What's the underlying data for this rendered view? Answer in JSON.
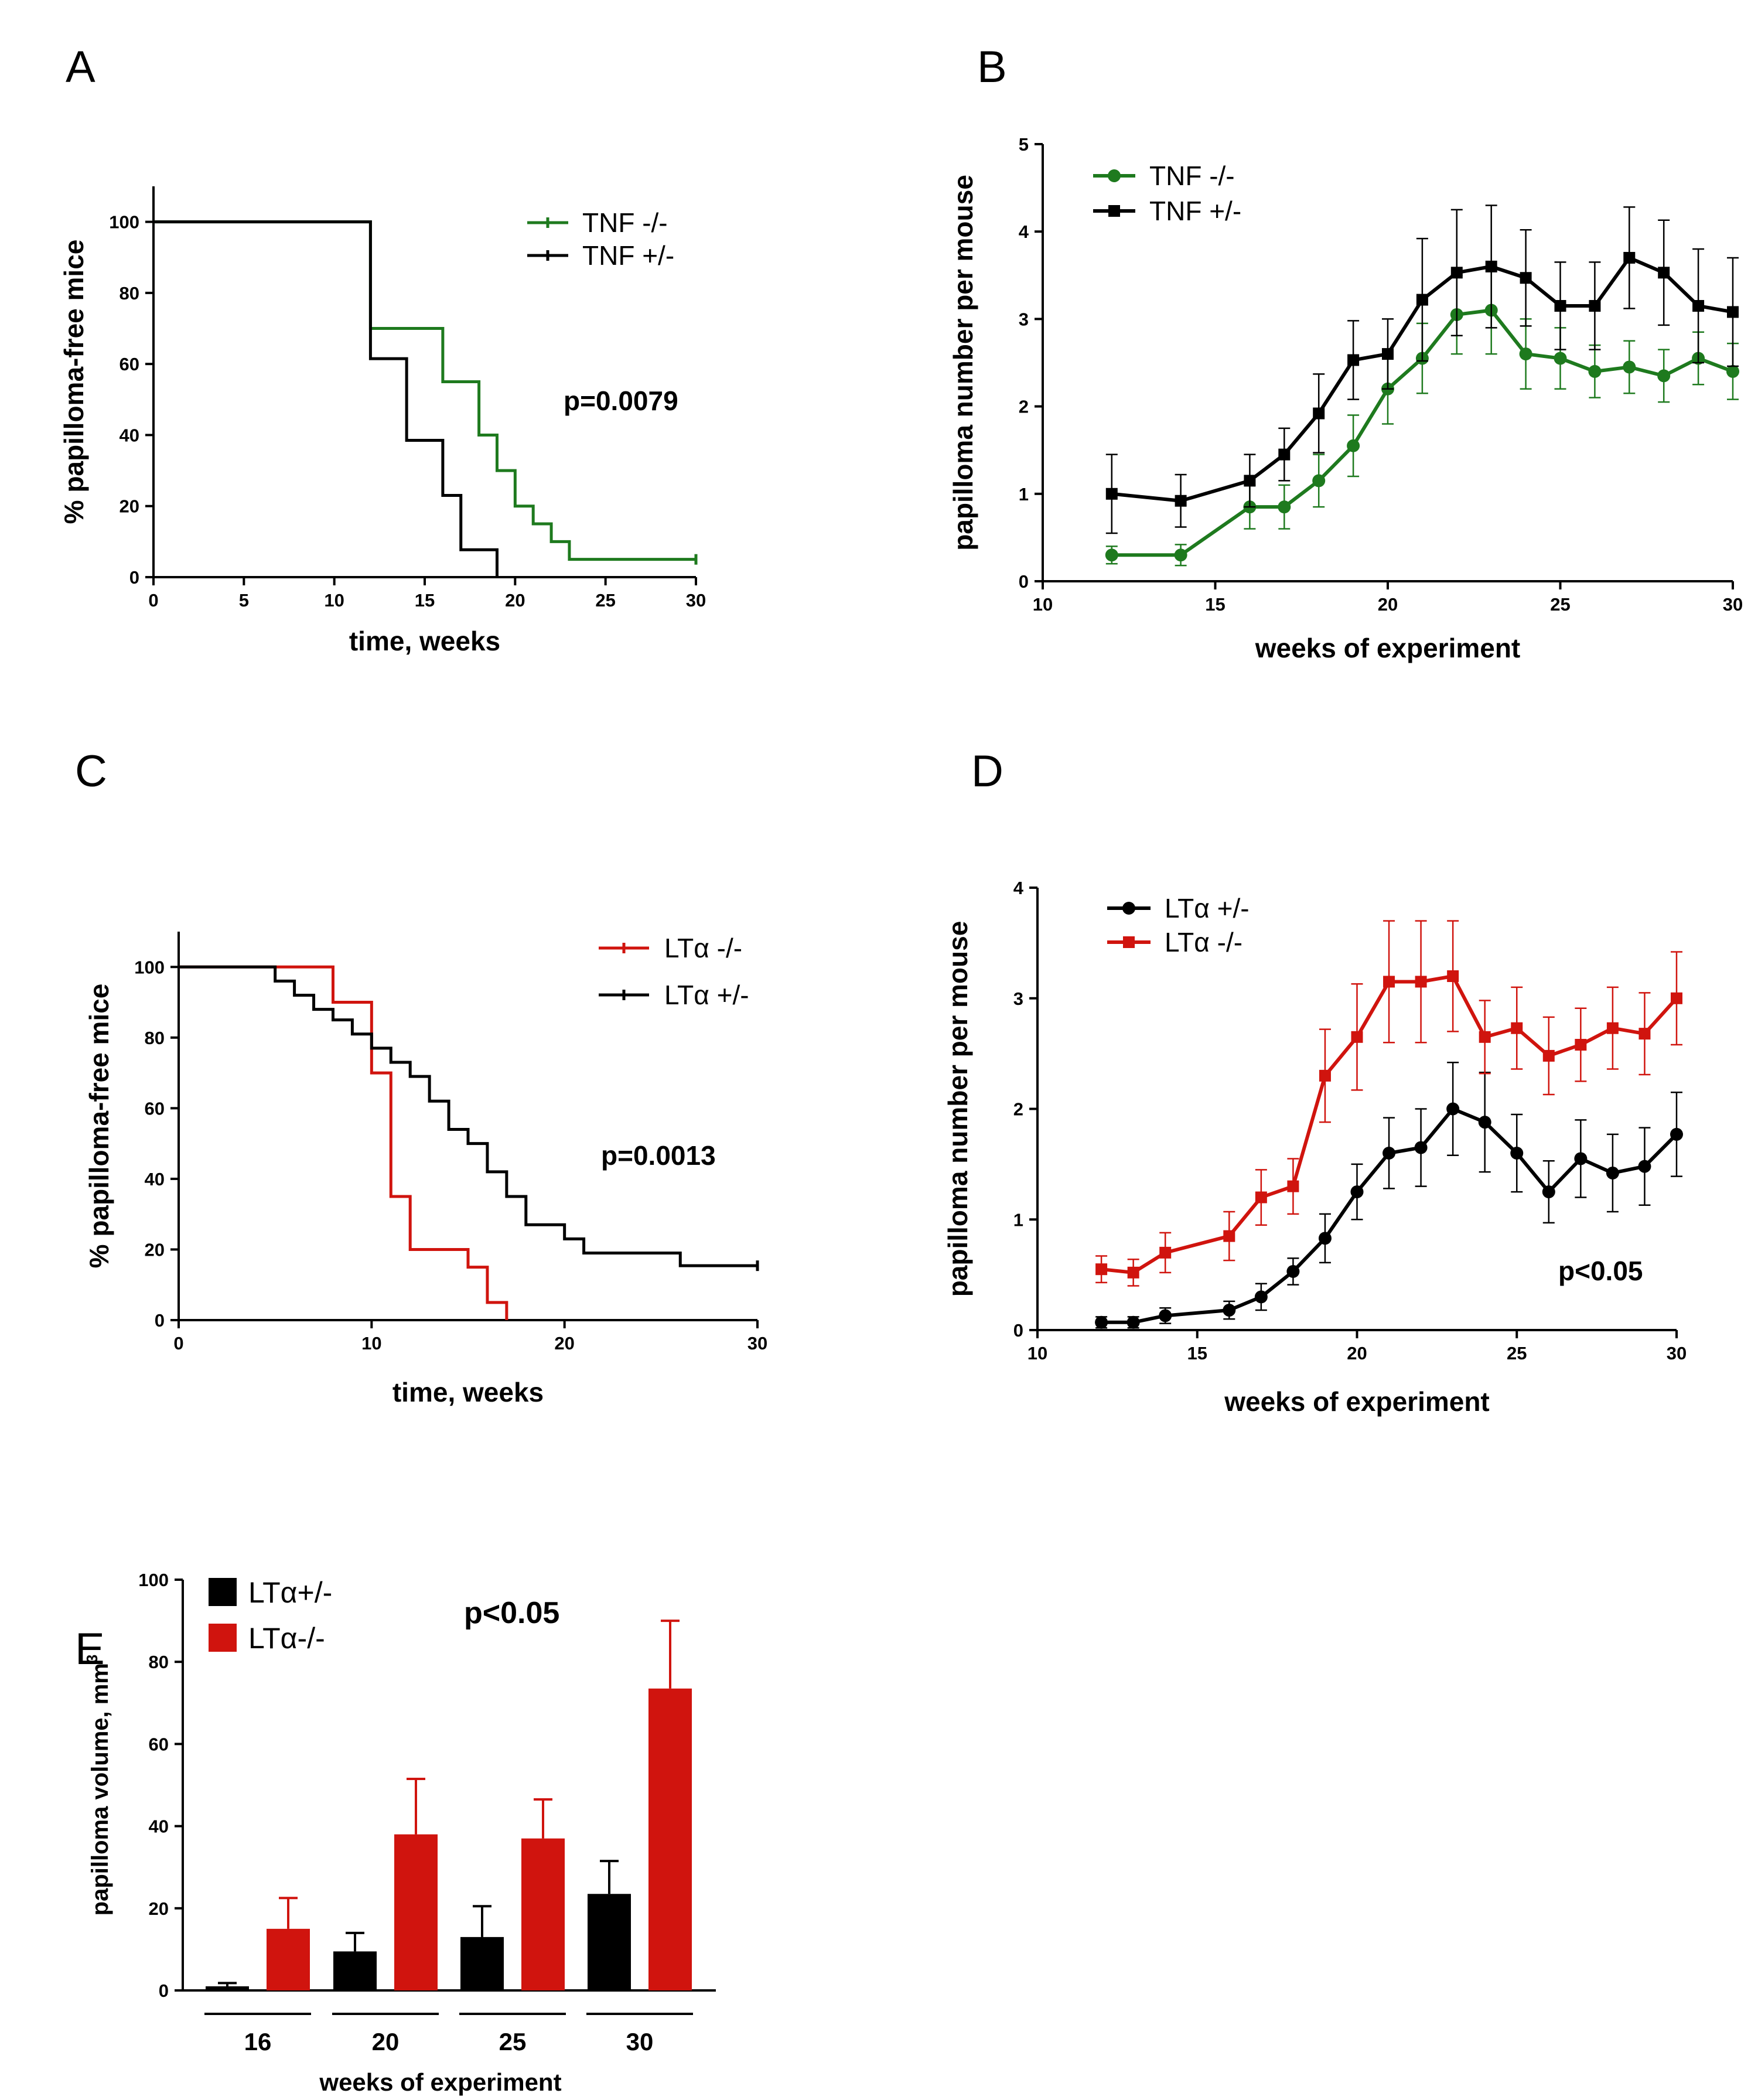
{
  "colors": {
    "green": "#1e7a1e",
    "black": "#000000",
    "red": "#d0140e"
  },
  "chart_data": [
    {
      "id": "A",
      "panel_label": "A",
      "type": "line",
      "step": true,
      "xlabel": "time, weeks",
      "ylabel": "% papilloma-free mice",
      "xlim": [
        0,
        30
      ],
      "ylim": [
        0,
        110
      ],
      "xticks": [
        0,
        5,
        10,
        15,
        20,
        25,
        30
      ],
      "yticks": [
        0,
        20,
        40,
        60,
        80,
        100
      ],
      "xtick_labels": [
        "0",
        "5",
        "10",
        "15",
        "20",
        "25",
        "30"
      ],
      "ytick_labels": [
        "0",
        "20",
        "40",
        "60",
        "80",
        "100"
      ],
      "annotation": "p=0.0079",
      "series": [
        {
          "name": "TNF -/-",
          "color": "#1e7a1e",
          "x": [
            0,
            12,
            16,
            18,
            19,
            20,
            21,
            22,
            23,
            30
          ],
          "values": [
            100,
            70,
            55,
            40,
            30,
            20,
            15,
            10,
            5,
            5
          ]
        },
        {
          "name": "TNF +/-",
          "color": "#000000",
          "x": [
            0,
            12,
            14,
            16,
            17,
            19
          ],
          "values": [
            100,
            61.5,
            38.5,
            23,
            7.7,
            0
          ]
        }
      ]
    },
    {
      "id": "B",
      "panel_label": "B",
      "type": "line",
      "xlabel": "weeks of experiment",
      "ylabel": "papilloma number per mouse",
      "xlim": [
        10,
        30
      ],
      "ylim": [
        0,
        5
      ],
      "xticks": [
        10,
        15,
        20,
        25,
        30
      ],
      "yticks": [
        0,
        1,
        2,
        3,
        4,
        5
      ],
      "xtick_labels": [
        "10",
        "15",
        "20",
        "25",
        "30"
      ],
      "ytick_labels": [
        "0",
        "1",
        "2",
        "3",
        "4",
        "5"
      ],
      "series": [
        {
          "name": "TNF -/-",
          "color": "#1e7a1e",
          "marker": "circle",
          "x": [
            12,
            14,
            16,
            17,
            18,
            19,
            20,
            21,
            22,
            23,
            24,
            25,
            26,
            27,
            28,
            29,
            30
          ],
          "values": [
            0.3,
            0.3,
            0.85,
            0.85,
            1.15,
            1.55,
            2.2,
            2.55,
            3.05,
            3.1,
            2.6,
            2.55,
            2.4,
            2.45,
            2.35,
            2.55,
            2.4
          ],
          "errors": [
            0.1,
            0.12,
            0.25,
            0.25,
            0.3,
            0.35,
            0.4,
            0.4,
            0.45,
            0.5,
            0.4,
            0.35,
            0.3,
            0.3,
            0.3,
            0.3,
            0.32
          ]
        },
        {
          "name": "TNF +/-",
          "color": "#000000",
          "marker": "square",
          "x": [
            12,
            14,
            16,
            17,
            18,
            19,
            20,
            21,
            22,
            23,
            24,
            25,
            26,
            27,
            28,
            29,
            30
          ],
          "values": [
            1.0,
            0.92,
            1.15,
            1.45,
            1.92,
            2.53,
            2.6,
            3.22,
            3.53,
            3.6,
            3.47,
            3.15,
            3.15,
            3.7,
            3.53,
            3.15,
            3.08
          ],
          "errors": [
            0.45,
            0.3,
            0.3,
            0.3,
            0.45,
            0.45,
            0.4,
            0.7,
            0.72,
            0.7,
            0.55,
            0.5,
            0.5,
            0.58,
            0.6,
            0.65,
            0.62
          ]
        }
      ]
    },
    {
      "id": "C",
      "panel_label": "C",
      "type": "line",
      "step": true,
      "xlabel": "time, weeks",
      "ylabel": "% papilloma-free mice",
      "xlim": [
        0,
        30
      ],
      "ylim": [
        0,
        110
      ],
      "xticks": [
        0,
        10,
        20,
        30
      ],
      "yticks": [
        0,
        20,
        40,
        60,
        80,
        100
      ],
      "xtick_labels": [
        "0",
        "10",
        "20",
        "30"
      ],
      "ytick_labels": [
        "0",
        "20",
        "40",
        "60",
        "80",
        "100"
      ],
      "annotation": "p=0.0013",
      "series": [
        {
          "name": "LTα -/-",
          "color": "#d0140e",
          "x": [
            0,
            8,
            10,
            11,
            12,
            15,
            16,
            17
          ],
          "values": [
            100,
            90,
            70,
            35,
            20,
            15,
            5,
            0
          ]
        },
        {
          "name": "LTα +/-",
          "color": "#000000",
          "x": [
            0,
            5,
            6,
            7,
            8,
            9,
            10,
            11,
            12,
            13,
            14,
            15,
            16,
            17,
            18,
            19,
            20,
            21,
            22,
            26,
            30
          ],
          "values": [
            100,
            96,
            92,
            88,
            85,
            81,
            77,
            73,
            69,
            62,
            54,
            50,
            42,
            35,
            27,
            27,
            23,
            19,
            19,
            15.4,
            15.4
          ]
        }
      ]
    },
    {
      "id": "D",
      "panel_label": "D",
      "type": "line",
      "xlabel": "weeks of experiment",
      "ylabel": "papilloma number per mouse",
      "xlim": [
        10,
        30
      ],
      "ylim": [
        0,
        4
      ],
      "xticks": [
        10,
        15,
        20,
        25,
        30
      ],
      "yticks": [
        0,
        1,
        2,
        3,
        4
      ],
      "xtick_labels": [
        "10",
        "15",
        "20",
        "25",
        "30"
      ],
      "ytick_labels": [
        "0",
        "1",
        "2",
        "3",
        "4"
      ],
      "annotation": "p<0.05",
      "series": [
        {
          "name": "LTα +/-",
          "color": "#000000",
          "marker": "circle",
          "x": [
            12,
            13,
            14,
            16,
            17,
            18,
            19,
            20,
            21,
            22,
            23,
            24,
            25,
            26,
            27,
            28,
            29,
            30
          ],
          "values": [
            0.07,
            0.07,
            0.13,
            0.18,
            0.3,
            0.53,
            0.83,
            1.25,
            1.6,
            1.65,
            2.0,
            1.88,
            1.6,
            1.25,
            1.55,
            1.42,
            1.48,
            1.77
          ],
          "errors": [
            0.05,
            0.05,
            0.07,
            0.08,
            0.12,
            0.12,
            0.22,
            0.25,
            0.32,
            0.35,
            0.42,
            0.45,
            0.35,
            0.28,
            0.35,
            0.35,
            0.35,
            0.38
          ]
        },
        {
          "name": "LTα -/-",
          "color": "#d0140e",
          "marker": "square",
          "x": [
            12,
            13,
            14,
            16,
            17,
            18,
            19,
            20,
            21,
            22,
            23,
            24,
            25,
            26,
            27,
            28,
            29,
            30
          ],
          "values": [
            0.55,
            0.52,
            0.7,
            0.85,
            1.2,
            1.3,
            2.3,
            2.65,
            3.15,
            3.15,
            3.2,
            2.65,
            2.73,
            2.48,
            2.58,
            2.73,
            2.68,
            3.0
          ],
          "errors": [
            0.12,
            0.12,
            0.18,
            0.22,
            0.25,
            0.25,
            0.42,
            0.48,
            0.55,
            0.55,
            0.5,
            0.33,
            0.37,
            0.35,
            0.33,
            0.37,
            0.37,
            0.42
          ]
        }
      ]
    },
    {
      "id": "E",
      "panel_label": "E",
      "type": "bar",
      "xlabel": "weeks of experiment",
      "ylabel": "papilloma volume, mm",
      "ylabel_sup": "3",
      "ylim": [
        0,
        100
      ],
      "yticks": [
        0,
        20,
        40,
        60,
        80,
        100
      ],
      "ytick_labels": [
        "0",
        "20",
        "40",
        "60",
        "80",
        "100"
      ],
      "categories": [
        "16",
        "20",
        "25",
        "30"
      ],
      "annotation": "p<0.05",
      "series": [
        {
          "name": "LTα+/-",
          "color": "#000000",
          "values": [
            1,
            9.5,
            13,
            23.5
          ],
          "errors": [
            0.8,
            4.5,
            7.5,
            8
          ]
        },
        {
          "name": "LTα-/-",
          "color": "#d0140e",
          "values": [
            15,
            38,
            37,
            73.5
          ],
          "errors": [
            7.5,
            13.5,
            9.5,
            16.5
          ]
        }
      ]
    }
  ]
}
